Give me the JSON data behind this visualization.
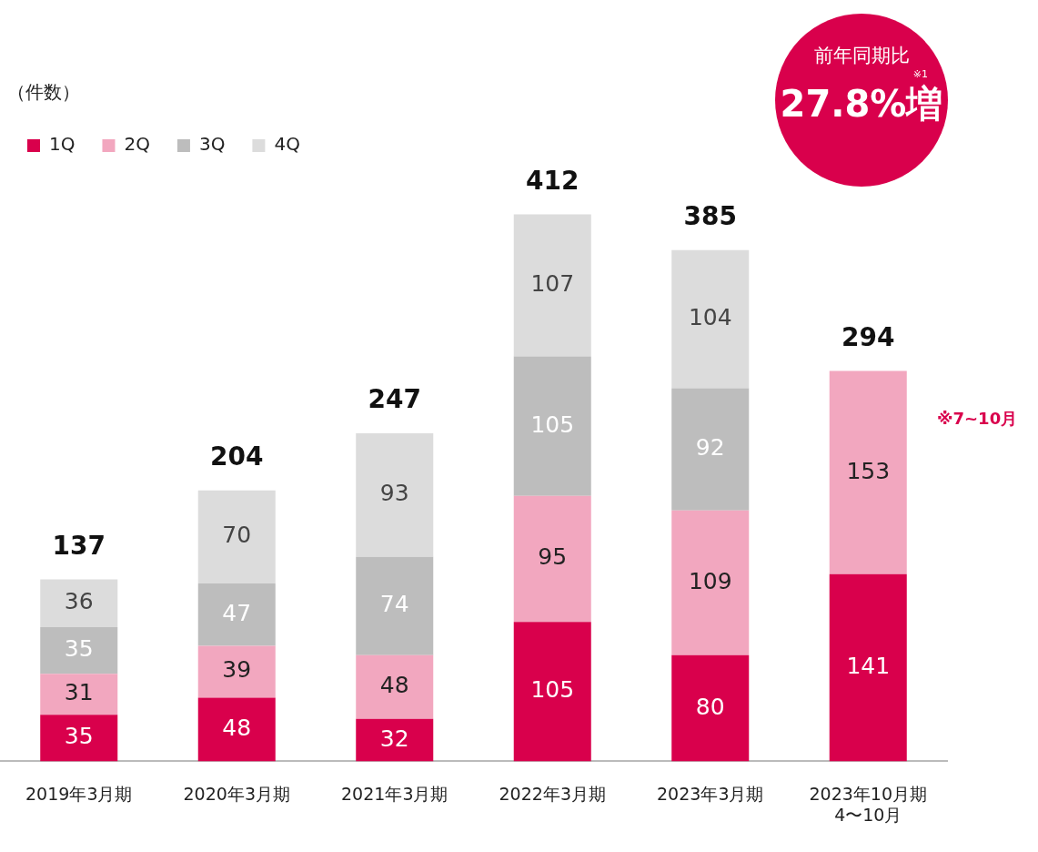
{
  "chart_data": {
    "type": "bar",
    "stacked": true,
    "legend": "top left",
    "data_labels": true,
    "categories": [
      "2019年3月期",
      "2020年3月期",
      "2021年3月期",
      "2022年3月期",
      "2023年3月期",
      "2023年10月期\n4〜10月"
    ],
    "series": [
      {
        "name": "1Q",
        "color": "#d9004c",
        "values": [
          35,
          48,
          32,
          105,
          80,
          141
        ]
      },
      {
        "name": "2Q",
        "color": "#f2a7bf",
        "values": [
          31,
          39,
          48,
          95,
          109,
          153
        ]
      },
      {
        "name": "3Q",
        "color": "#bdbdbd",
        "values": [
          35,
          47,
          74,
          105,
          92,
          null
        ]
      },
      {
        "name": "4Q",
        "color": "#dcdcdc",
        "values": [
          36,
          70,
          93,
          107,
          104,
          null
        ]
      }
    ],
    "totals": [
      "137",
      "204",
      "247",
      "412",
      "385",
      "294"
    ],
    "annotations": [
      "（件数）",
      "前年同期比",
      "※1",
      "27.8%増",
      "※7~10月"
    ]
  }
}
